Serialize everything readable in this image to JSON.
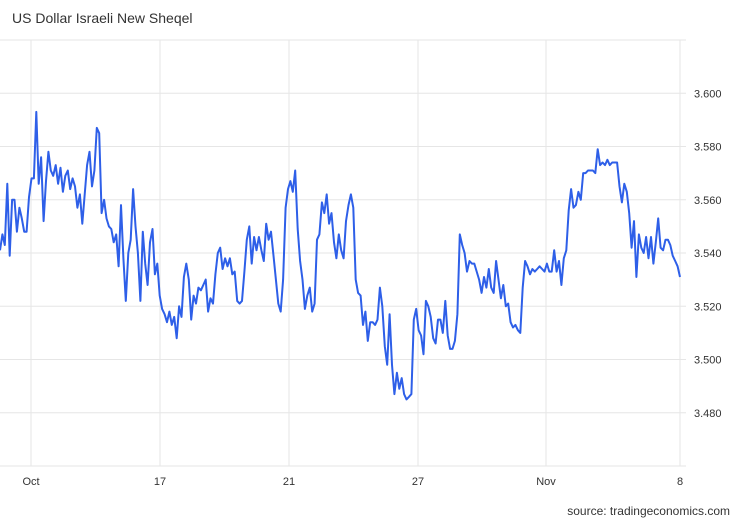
{
  "title": "US Dollar Israeli New Sheqel",
  "source": "source: tradingeconomics.com",
  "chart_data": {
    "type": "line",
    "title": "US Dollar Israeli New Sheqel",
    "xlabel": "",
    "ylabel": "",
    "x_ticks": [
      "Oct",
      "17",
      "21",
      "27",
      "Nov",
      "8"
    ],
    "y_ticks": [
      "3.600",
      "3.580",
      "3.560",
      "3.540",
      "3.520",
      "3.500",
      "3.480"
    ],
    "ylim": [
      3.46,
      3.62
    ],
    "y_axis_position": "right",
    "grid": true,
    "color": "#2e5fe8",
    "series": [
      {
        "values": [
          3.541,
          3.547,
          3.543,
          3.566,
          3.539,
          3.56,
          3.56,
          3.548,
          3.557,
          3.553,
          3.548,
          3.548,
          3.561,
          3.568,
          3.568,
          3.593,
          3.566,
          3.576,
          3.552,
          3.567,
          3.578,
          3.571,
          3.569,
          3.573,
          3.566,
          3.572,
          3.563,
          3.569,
          3.571,
          3.564,
          3.568,
          3.565,
          3.557,
          3.562,
          3.551,
          3.562,
          3.573,
          3.578,
          3.565,
          3.571,
          3.587,
          3.585,
          3.555,
          3.56,
          3.553,
          3.55,
          3.549,
          3.544,
          3.547,
          3.535,
          3.558,
          3.538,
          3.522,
          3.54,
          3.545,
          3.564,
          3.55,
          3.54,
          3.522,
          3.548,
          3.536,
          3.528,
          3.544,
          3.549,
          3.532,
          3.536,
          3.524,
          3.519,
          3.517,
          3.514,
          3.518,
          3.513,
          3.516,
          3.508,
          3.52,
          3.516,
          3.531,
          3.536,
          3.53,
          3.515,
          3.524,
          3.521,
          3.527,
          3.526,
          3.528,
          3.53,
          3.518,
          3.523,
          3.521,
          3.532,
          3.54,
          3.542,
          3.534,
          3.538,
          3.535,
          3.538,
          3.532,
          3.533,
          3.522,
          3.521,
          3.522,
          3.533,
          3.545,
          3.55,
          3.536,
          3.546,
          3.541,
          3.546,
          3.541,
          3.537,
          3.551,
          3.545,
          3.548,
          3.539,
          3.53,
          3.521,
          3.518,
          3.53,
          3.557,
          3.564,
          3.567,
          3.563,
          3.571,
          3.549,
          3.537,
          3.53,
          3.519,
          3.524,
          3.527,
          3.518,
          3.521,
          3.545,
          3.547,
          3.559,
          3.555,
          3.562,
          3.551,
          3.555,
          3.544,
          3.538,
          3.547,
          3.541,
          3.538,
          3.552,
          3.558,
          3.562,
          3.557,
          3.53,
          3.525,
          3.524,
          3.513,
          3.518,
          3.507,
          3.514,
          3.514,
          3.513,
          3.515,
          3.527,
          3.52,
          3.505,
          3.498,
          3.517,
          3.498,
          3.487,
          3.495,
          3.489,
          3.493,
          3.487,
          3.485,
          3.486,
          3.487,
          3.515,
          3.519,
          3.511,
          3.509,
          3.502,
          3.522,
          3.52,
          3.516,
          3.508,
          3.506,
          3.515,
          3.515,
          3.51,
          3.522,
          3.509,
          3.504,
          3.504,
          3.507,
          3.517,
          3.547,
          3.543,
          3.54,
          3.533,
          3.537,
          3.536,
          3.536,
          3.533,
          3.53,
          3.525,
          3.531,
          3.527,
          3.534,
          3.527,
          3.525,
          3.537,
          3.53,
          3.523,
          3.528,
          3.52,
          3.521,
          3.514,
          3.512,
          3.513,
          3.511,
          3.51,
          3.527,
          3.537,
          3.535,
          3.532,
          3.534,
          3.533,
          3.534,
          3.535,
          3.534,
          3.533,
          3.536,
          3.533,
          3.533,
          3.541,
          3.533,
          3.537,
          3.528,
          3.538,
          3.541,
          3.556,
          3.564,
          3.557,
          3.558,
          3.563,
          3.56,
          3.57,
          3.57,
          3.571,
          3.571,
          3.571,
          3.57,
          3.579,
          3.573,
          3.574,
          3.573,
          3.575,
          3.573,
          3.574,
          3.574,
          3.574,
          3.565,
          3.559,
          3.566,
          3.563,
          3.555,
          3.542,
          3.552,
          3.531,
          3.547,
          3.542,
          3.54,
          3.546,
          3.538,
          3.546,
          3.536,
          3.544,
          3.553,
          3.542,
          3.541,
          3.545,
          3.545,
          3.543,
          3.539,
          3.537,
          3.535,
          3.531
        ]
      }
    ]
  }
}
